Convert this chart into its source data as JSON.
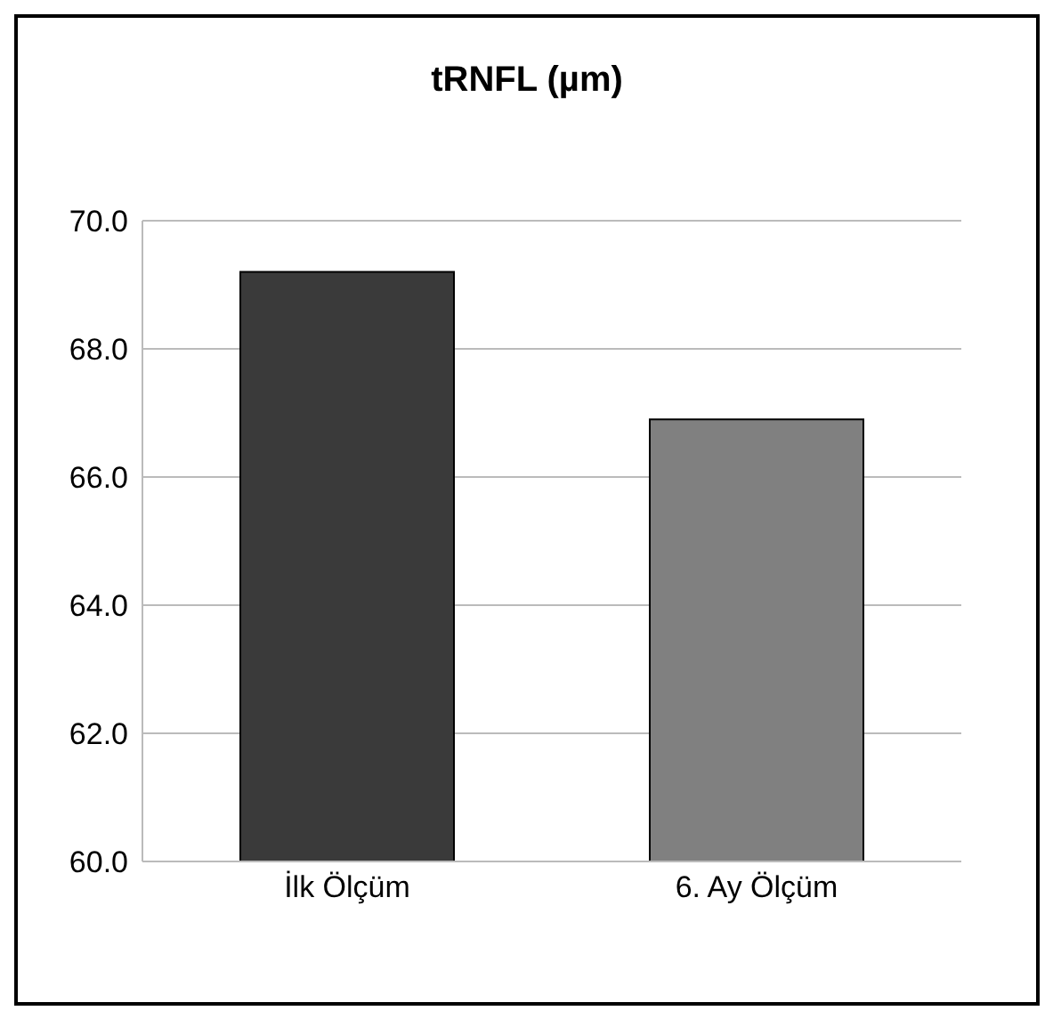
{
  "chart_data": {
    "type": "bar",
    "title": "tRNFL (µm)",
    "categories": [
      "İlk Ölçüm",
      "6. Ay Ölçüm"
    ],
    "values": [
      69.2,
      66.9
    ],
    "colors": [
      "#3a3a3a",
      "#808080"
    ],
    "ylim": [
      60,
      70
    ],
    "yticks": [
      {
        "value": 60,
        "label": "60.0"
      },
      {
        "value": 62,
        "label": "62.0"
      },
      {
        "value": 64,
        "label": "64.0"
      },
      {
        "value": 66,
        "label": "66.0"
      },
      {
        "value": 68,
        "label": "68.0"
      },
      {
        "value": 70,
        "label": "70.0"
      }
    ],
    "grid": "y"
  }
}
